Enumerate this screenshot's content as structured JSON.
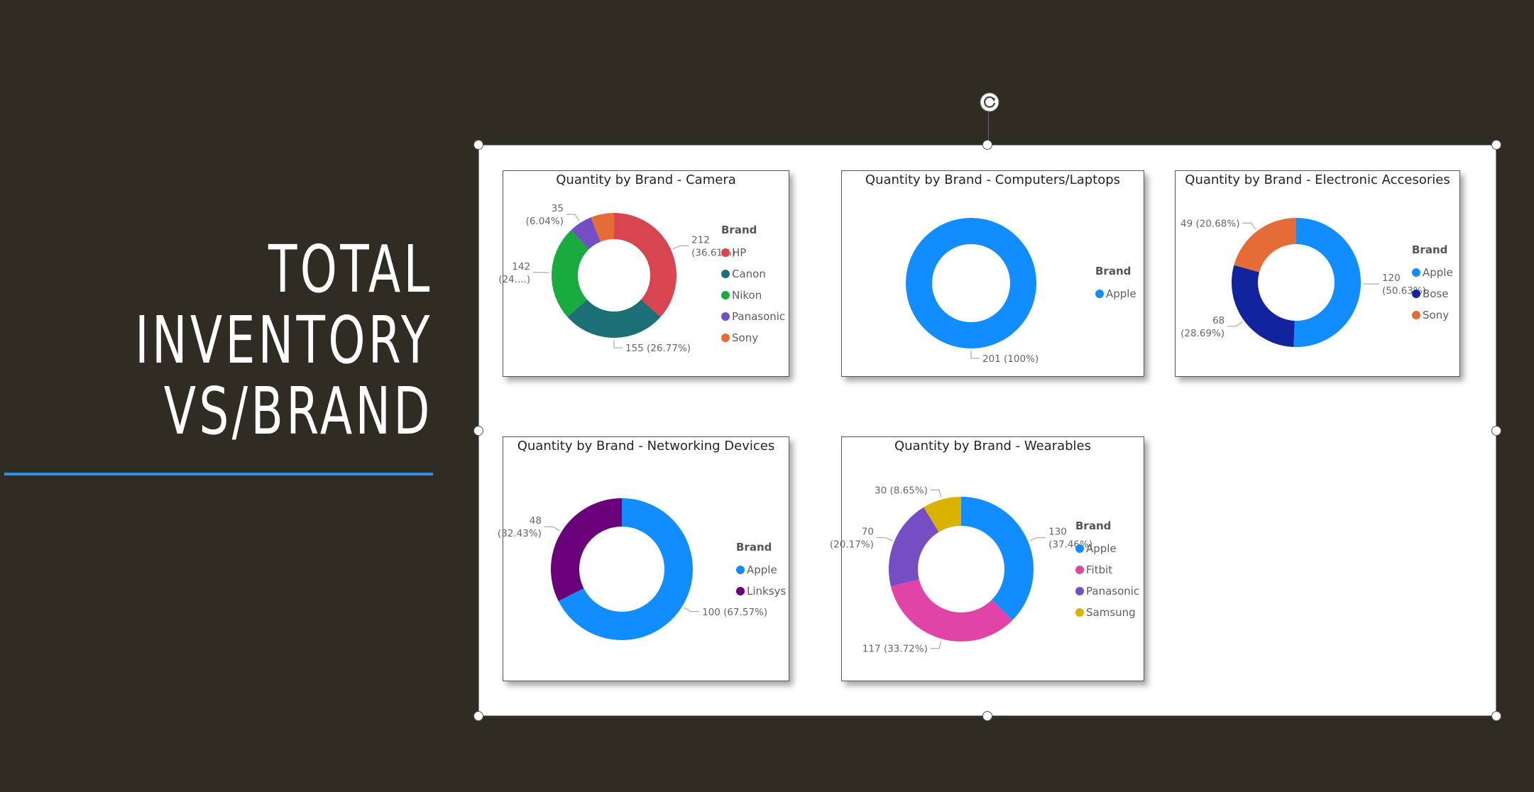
{
  "slide": {
    "title_lines": [
      "TOTAL",
      "INVENTORY",
      "VS/BRAND"
    ],
    "accent_color": "#2F8EE6",
    "background_color": "#2E2C23"
  },
  "chart_data": [
    {
      "type": "pie",
      "donut": true,
      "title": "Quantity by Brand - Camera",
      "legend_title": "Brand",
      "legend_placement": "right",
      "slices": [
        {
          "name": "HP",
          "value": 212,
          "label": [
            "212",
            "(36.61%)"
          ],
          "color": "#D64550"
        },
        {
          "name": "Canon",
          "value": 155,
          "label": [
            "155 (26.77%)"
          ],
          "color": "#1A7074"
        },
        {
          "name": "Nikon",
          "value": 142,
          "label": [
            "142",
            "(24....)"
          ],
          "color": "#1AAB40"
        },
        {
          "name": "Panasonic",
          "value": 35,
          "label": [
            "35",
            "(6.04%)"
          ],
          "color": "#744EC2"
        },
        {
          "name": "Sony",
          "value": 35,
          "label": [],
          "color": "#E66C37"
        }
      ]
    },
    {
      "type": "pie",
      "donut": true,
      "title": "Quantity by Brand - Computers/Laptops",
      "legend_title": "Brand",
      "legend_placement": "right",
      "slices": [
        {
          "name": "Apple",
          "value": 201,
          "label": [
            "201 (100%)"
          ],
          "color": "#118DFF"
        }
      ]
    },
    {
      "type": "pie",
      "donut": true,
      "title": "Quantity by Brand - Electronic Accesories",
      "legend_title": "Brand",
      "legend_placement": "right",
      "slices": [
        {
          "name": "Apple",
          "value": 120,
          "label": [
            "120",
            "(50.63%)"
          ],
          "color": "#118DFF"
        },
        {
          "name": "Bose",
          "value": 68,
          "label": [
            "68",
            "(28.69%)"
          ],
          "color": "#12239E"
        },
        {
          "name": "Sony",
          "value": 49,
          "label": [
            "49 (20.68%)"
          ],
          "color": "#E66C37"
        }
      ]
    },
    {
      "type": "pie",
      "donut": true,
      "title": "Quantity by Brand - Networking Devices",
      "legend_title": "Brand",
      "legend_placement": "right",
      "slices": [
        {
          "name": "Apple",
          "value": 100,
          "label": [
            "100 (67.57%)"
          ],
          "color": "#118DFF"
        },
        {
          "name": "Linksys",
          "value": 48,
          "label": [
            "48",
            "(32.43%)"
          ],
          "color": "#6B007B"
        }
      ]
    },
    {
      "type": "pie",
      "donut": true,
      "title": "Quantity by Brand - Wearables",
      "legend_title": "Brand",
      "legend_placement": "right",
      "slices": [
        {
          "name": "Apple",
          "value": 130,
          "label": [
            "130",
            "(37.46%)"
          ],
          "color": "#118DFF"
        },
        {
          "name": "Fitbit",
          "value": 117,
          "label": [
            "117 (33.72%)"
          ],
          "color": "#E044A7"
        },
        {
          "name": "Panasonic",
          "value": 70,
          "label": [
            "70",
            "(20.17%)"
          ],
          "color": "#744EC2"
        },
        {
          "name": "Samsung",
          "value": 30,
          "label": [
            "30 (8.65%)"
          ],
          "color": "#D9B300"
        }
      ]
    }
  ]
}
